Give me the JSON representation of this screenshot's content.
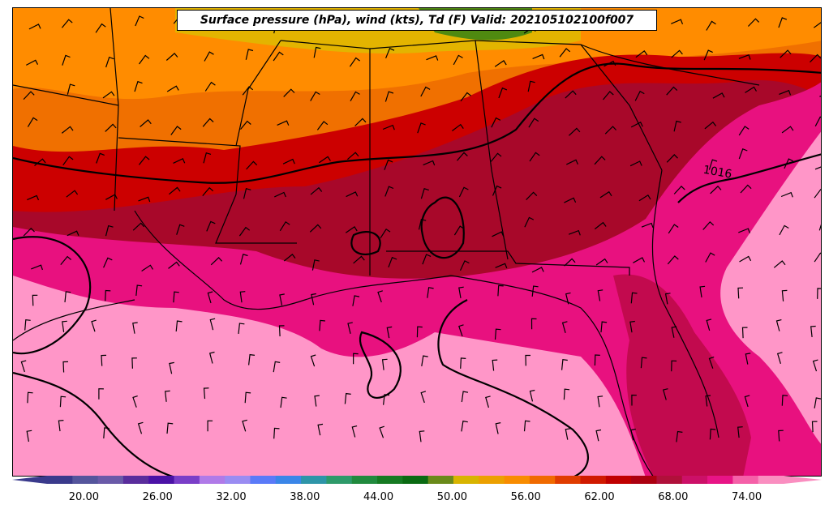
{
  "map": {
    "title": "Surface pressure (hPa), wind (kts), Td (F) Valid: 202105102100f007",
    "isobar_label": "1016",
    "colors": {
      "ocean": "#ff96c8",
      "gulf_coast": "#e8117f",
      "deep_south": "#b40b40",
      "inland": "#cc0000",
      "north": "#ee5a00",
      "far_north": "#ff8c00",
      "plateau": "#e3b400",
      "mountains": "#4f8a10",
      "isobar": "#000000"
    }
  },
  "colorbar": {
    "ticks": [
      "20.00",
      "26.00",
      "32.00",
      "38.00",
      "44.00",
      "50.00",
      "56.00",
      "62.00",
      "68.00",
      "74.00"
    ],
    "range": [
      17,
      77
    ],
    "step": 2,
    "colors": [
      "#3a3a8c",
      "#55559c",
      "#6a5aa8",
      "#5a2d9c",
      "#4b12a6",
      "#7a3ec8",
      "#b07ae8",
      "#9a8cf2",
      "#5a7af8",
      "#3a86e8",
      "#2e95a8",
      "#2e9a6a",
      "#218a3e",
      "#167a22",
      "#0a6a12",
      "#6a8a1a",
      "#d8b400",
      "#eca000",
      "#f88c00",
      "#f06a00",
      "#e03c00",
      "#d01a00",
      "#c00000",
      "#ac0010",
      "#b0103a",
      "#cc1068",
      "#e81486",
      "#f560a8",
      "#fa8ec0"
    ]
  }
}
